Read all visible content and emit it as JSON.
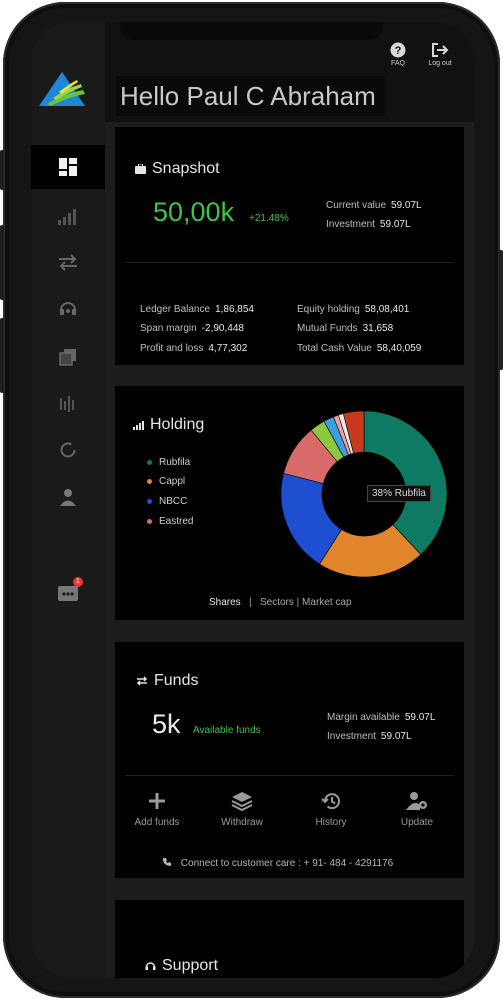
{
  "topbar": {
    "faq_label": "FAQ",
    "logout_label": "Log out"
  },
  "greeting": "Hello Paul C Abraham",
  "sidebar": {
    "notification_count": "1"
  },
  "snapshot": {
    "title": "Snapshot",
    "value": "50,00k",
    "change": "+21.48%",
    "current_value_label": "Current value",
    "current_value": "59.07L",
    "investment_label": "Investment",
    "investment": "59.07L",
    "ledger_balance_label": "Ledger Balance",
    "ledger_balance": "1,86,854",
    "span_margin_label": "Span margin",
    "span_margin": "-2,90,448",
    "profit_loss_label": "Profit and loss",
    "profit_loss": "4,77,302",
    "equity_holding_label": "Equity holding",
    "equity_holding": "58,08,401",
    "mutual_funds_label": "Mutual Funds",
    "mutual_funds": "31,658",
    "total_cash_label": "Total Cash Value",
    "total_cash": "58,40,059"
  },
  "holding": {
    "title": "Holding",
    "legend": [
      {
        "name": "Rubfila",
        "color": "#0f7a63"
      },
      {
        "name": "Cappl",
        "color": "#e0852b"
      },
      {
        "name": "NBCC",
        "color": "#1f4fd1"
      },
      {
        "name": "Eastred",
        "color": "#d86a6a"
      }
    ],
    "tooltip": "38% Rubfila",
    "tabs": {
      "shares": "Shares",
      "sectors": "Sectors",
      "market_cap": "Market cap"
    },
    "slices": [
      {
        "name": "Rubfila",
        "value": 38,
        "color": "#0f7a63"
      },
      {
        "name": "Cappl",
        "value": 21,
        "color": "#e0852b"
      },
      {
        "name": "NBCC",
        "value": 20,
        "color": "#1f4fd1"
      },
      {
        "name": "Eastred",
        "value": 10,
        "color": "#d86a6a"
      },
      {
        "name": "other-1",
        "value": 3,
        "color": "#8ec63f"
      },
      {
        "name": "other-2",
        "value": 2,
        "color": "#3aa0e0"
      },
      {
        "name": "other-3",
        "value": 1,
        "color": "#f2a0a0"
      },
      {
        "name": "other-4",
        "value": 1,
        "color": "#e8e8e8"
      },
      {
        "name": "other-5",
        "value": 4,
        "color": "#c83a1e"
      }
    ]
  },
  "funds": {
    "title": "Funds",
    "value": "5k",
    "available_label": "Available funds",
    "margin_label": "Margin available",
    "margin": "59.07L",
    "investment_label": "Investment",
    "investment": "59.07L",
    "actions": {
      "add": "Add funds",
      "withdraw": "Withdraw",
      "history": "History",
      "update": "Update"
    },
    "customer_care": "Connect to customer care : + 91- 484 - 4291176"
  },
  "support": {
    "title": "Support"
  }
}
